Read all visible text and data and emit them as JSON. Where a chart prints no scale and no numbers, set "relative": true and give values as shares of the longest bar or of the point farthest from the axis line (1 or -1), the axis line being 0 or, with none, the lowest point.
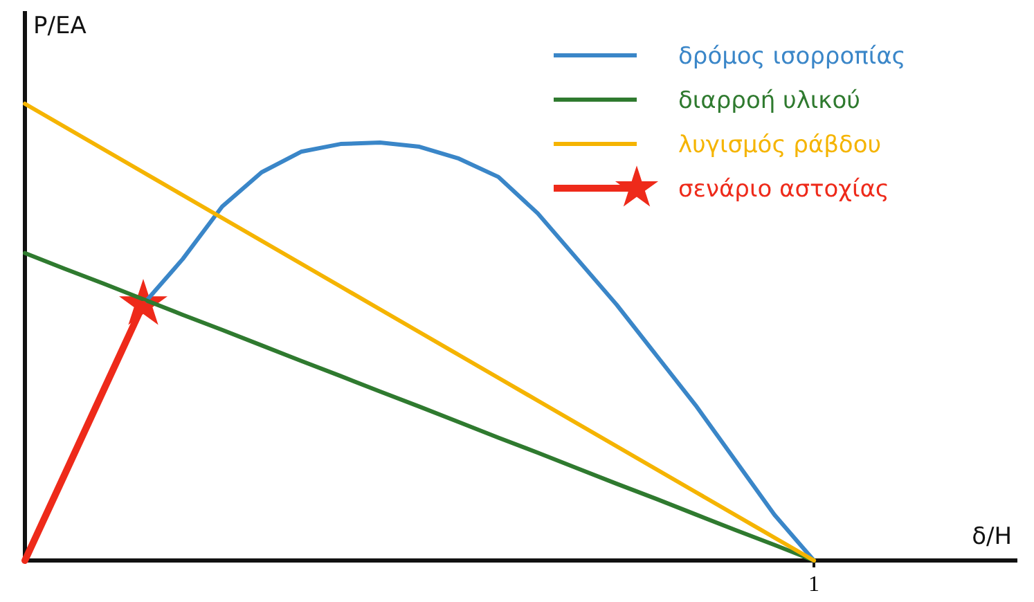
{
  "chart_data": {
    "type": "line",
    "relative": true,
    "ylabel": "P/EA",
    "categories": [
      null,
      null,
      null,
      null,
      null,
      null,
      null,
      null,
      null,
      null,
      null,
      null,
      null,
      null,
      null,
      null,
      null,
      null,
      null,
      null,
      null
    ],
    "annotations": [
      "1",
      "δ/H"
    ],
    "legend": "top right",
    "grid": false,
    "series": [
      {
        "name": "δρόμος ισορροπίας",
        "color": "#3a86c8",
        "marker": "none",
        "values": [
          null,
          null,
          null,
          0.561,
          0.66,
          0.775,
          0.85,
          0.895,
          0.912,
          0.915,
          0.906,
          0.88,
          0.84,
          0.76,
          0.66,
          0.56,
          0.45,
          0.34,
          0.22,
          0.1,
          0
        ]
      },
      {
        "name": "διαρροή υλικού",
        "color": "#2f7a2f",
        "marker": "none",
        "values": [
          0.673,
          0.639,
          0.606,
          0.572,
          0.538,
          0.505,
          0.471,
          0.437,
          0.404,
          0.37,
          0.337,
          0.303,
          0.269,
          0.236,
          0.202,
          0.168,
          0.135,
          0.101,
          0.067,
          0.034,
          0
        ]
      },
      {
        "name": "λυγισμός ράβδου",
        "color": "#f5b400",
        "marker": "none",
        "values": [
          1,
          0.95,
          0.9,
          0.85,
          0.8,
          0.75,
          0.7,
          0.65,
          0.6,
          0.55,
          0.5,
          0.45,
          0.4,
          0.35,
          0.3,
          0.25,
          0.2,
          0.15,
          0.1,
          0.05,
          0
        ]
      },
      {
        "name": "σενάριο αστοχίας",
        "color": "#ee2a1a",
        "values": [
          0,
          0.187,
          0.374,
          0.561,
          null,
          null,
          null,
          null,
          null,
          null,
          null,
          null,
          null,
          null,
          null,
          null,
          null,
          null,
          null,
          null,
          null
        ]
      }
    ]
  }
}
